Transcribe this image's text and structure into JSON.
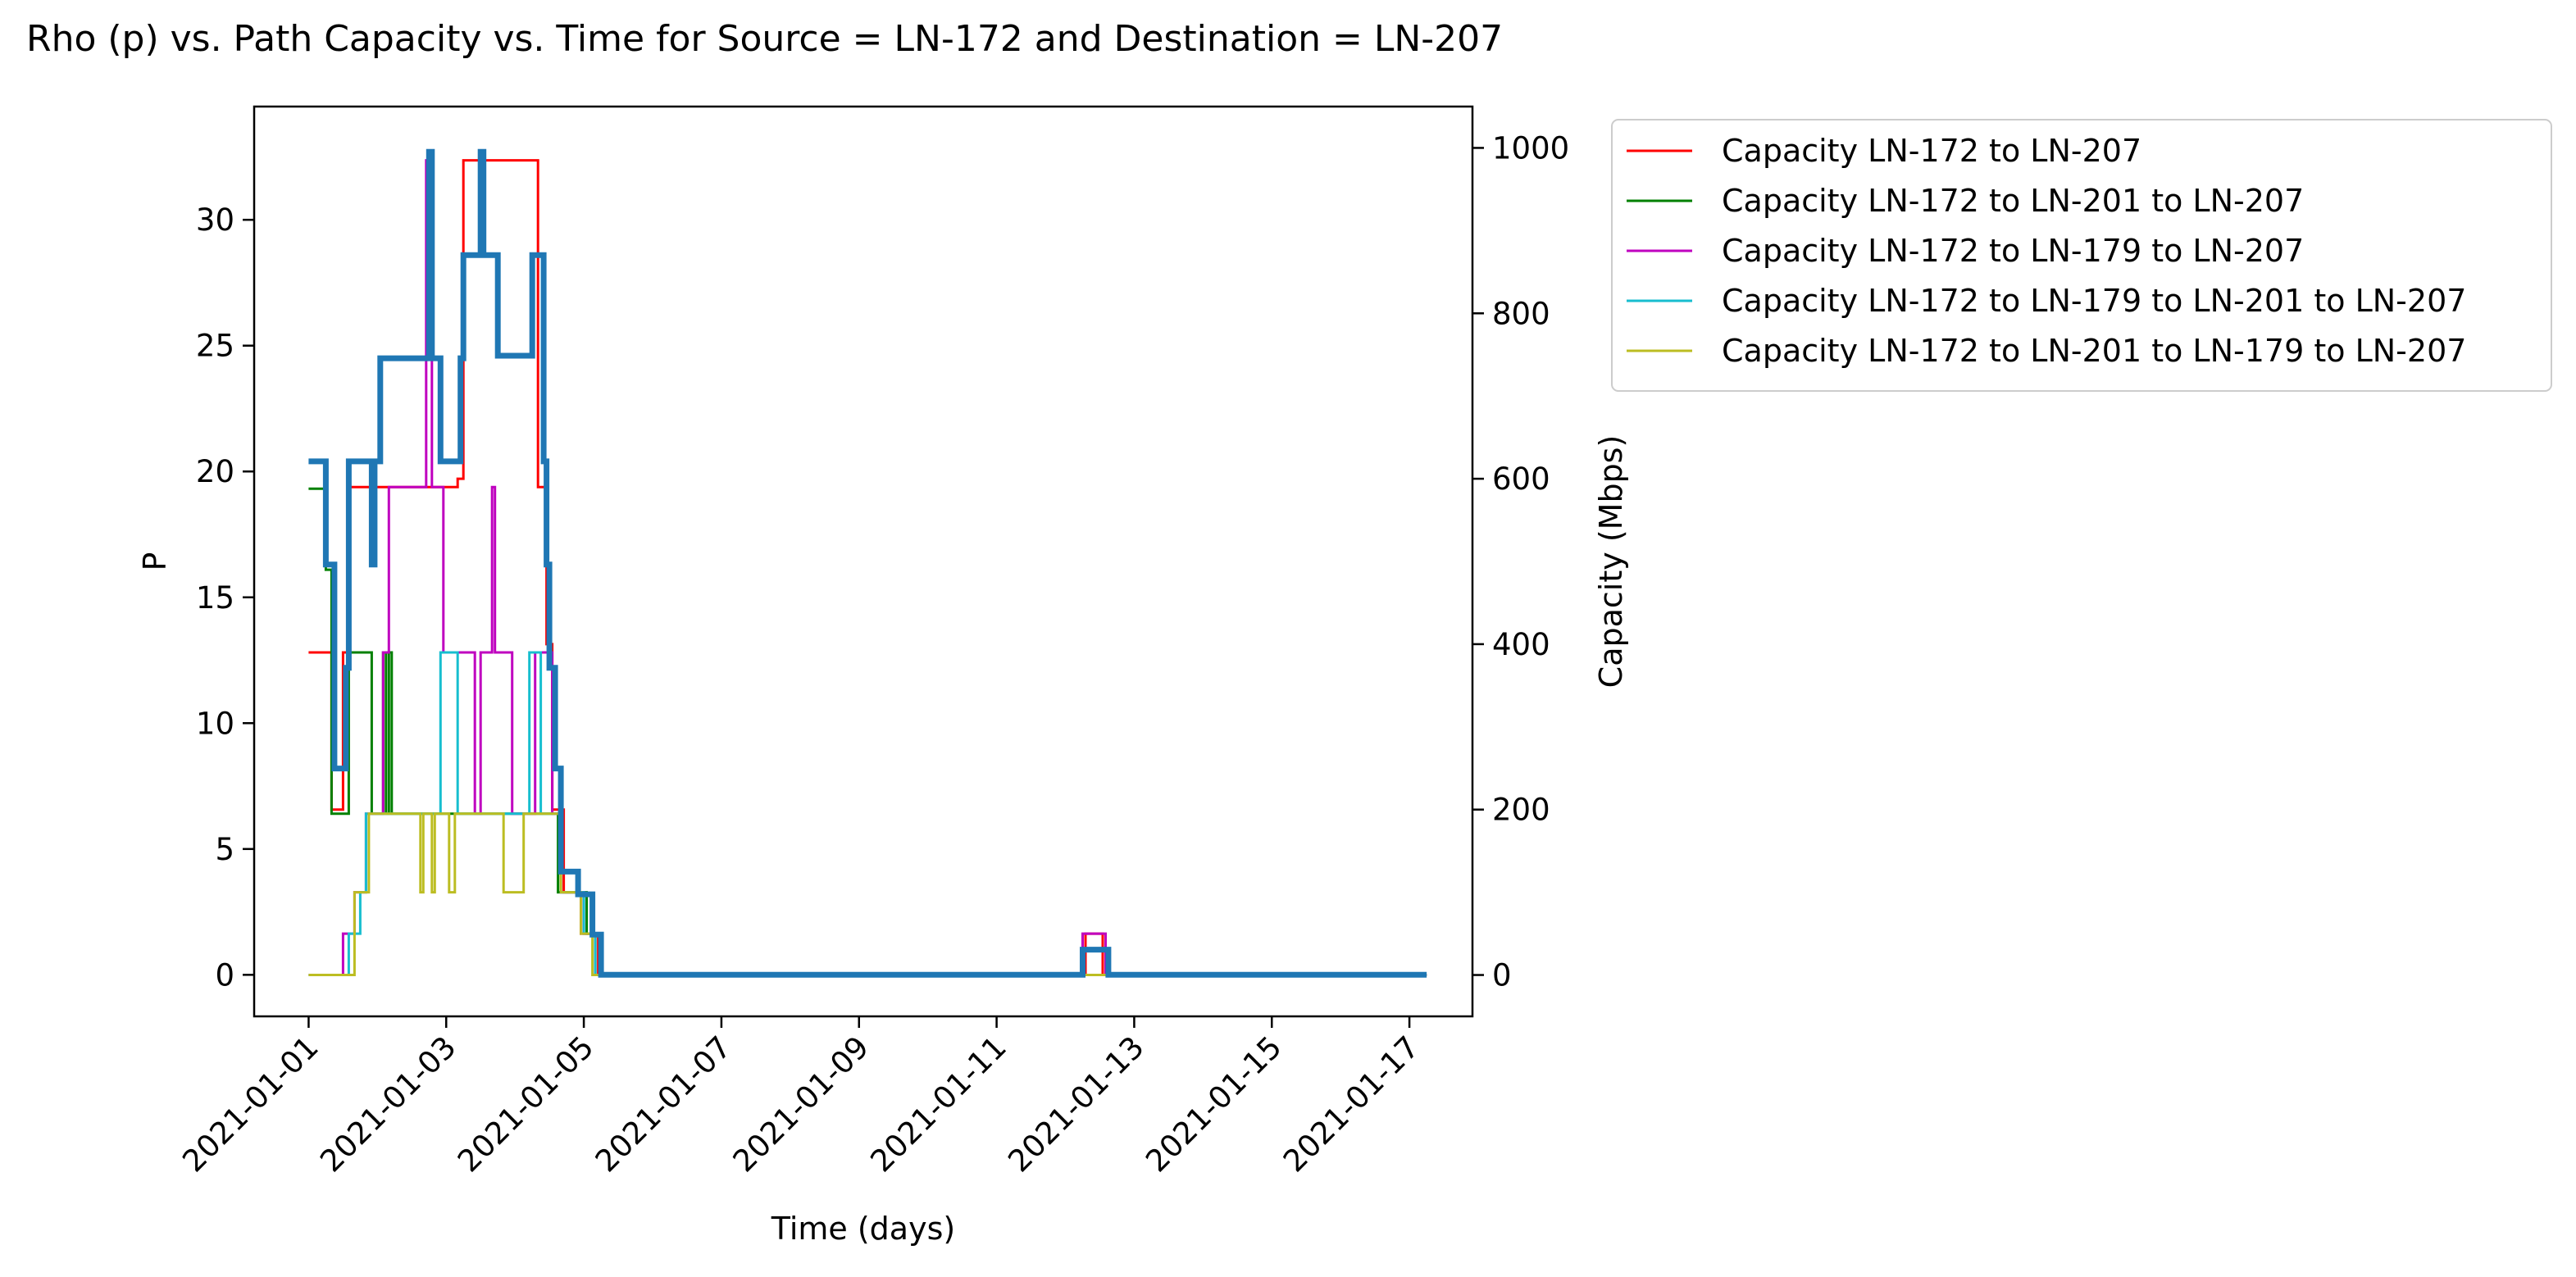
{
  "chart_data": {
    "type": "line",
    "title": "Rho (p) vs. Path Capacity vs. Time for Source = LN-172 and Destination = LN-207",
    "xlabel": "Time (days)",
    "ylabel": "P",
    "y2label": "Capacity (Mbps)",
    "x_axis": "date",
    "xlim": [
      "2020-12-31T05:00",
      "2021-01-17T22:00"
    ],
    "x_ticks": [
      "2021-01-01",
      "2021-01-03",
      "2021-01-05",
      "2021-01-07",
      "2021-01-09",
      "2021-01-11",
      "2021-01-13",
      "2021-01-15",
      "2021-01-17"
    ],
    "ylim": [
      -1.65,
      34.5
    ],
    "y_ticks": [
      0,
      5,
      10,
      15,
      20,
      25,
      30
    ],
    "y2lim": [
      -50,
      1050
    ],
    "y2_ticks": [
      0,
      200,
      400,
      600,
      800,
      1000
    ],
    "grid": false,
    "legend_position": "outside top-right",
    "rho_series": {
      "axis": "left",
      "color": "#1f77b4",
      "points": [
        [
          "2021-01-01T00:00",
          20.4
        ],
        [
          "2021-01-01T06:00",
          16.3
        ],
        [
          "2021-01-01T09:00",
          8.2
        ],
        [
          "2021-01-01T13:00",
          12.2
        ],
        [
          "2021-01-01T14:00",
          20.4
        ],
        [
          "2021-01-01T22:00",
          16.3
        ],
        [
          "2021-01-01T23:00",
          20.4
        ],
        [
          "2021-01-02T01:00",
          24.5
        ],
        [
          "2021-01-02T18:00",
          32.7
        ],
        [
          "2021-01-02T19:00",
          24.5
        ],
        [
          "2021-01-02T22:00",
          20.4
        ],
        [
          "2021-01-03T05:00",
          24.5
        ],
        [
          "2021-01-03T06:00",
          28.6
        ],
        [
          "2021-01-03T12:00",
          32.7
        ],
        [
          "2021-01-03T13:00",
          28.6
        ],
        [
          "2021-01-03T18:00",
          24.6
        ],
        [
          "2021-01-04T06:00",
          28.6
        ],
        [
          "2021-01-04T10:00",
          20.4
        ],
        [
          "2021-01-04T11:00",
          16.3
        ],
        [
          "2021-01-04T12:00",
          12.2
        ],
        [
          "2021-01-04T14:00",
          8.2
        ],
        [
          "2021-01-04T16:00",
          4.1
        ],
        [
          "2021-01-04T22:00",
          3.2
        ],
        [
          "2021-01-05T03:00",
          1.6
        ],
        [
          "2021-01-05T06:00",
          0.0
        ],
        [
          "2021-01-12T06:00",
          1.0
        ],
        [
          "2021-01-12T15:00",
          0.0
        ],
        [
          "2021-01-17T06:00",
          0.0
        ]
      ]
    },
    "series": [
      {
        "name": "Capacity LN-172 to LN-207",
        "axis": "right",
        "color": "#ff0000",
        "points": [
          [
            "2021-01-01T00:00",
            390
          ],
          [
            "2021-01-01T08:00",
            200
          ],
          [
            "2021-01-01T12:00",
            390
          ],
          [
            "2021-01-01T14:00",
            590
          ],
          [
            "2021-01-03T04:00",
            600
          ],
          [
            "2021-01-03T06:00",
            985
          ],
          [
            "2021-01-04T08:00",
            590
          ],
          [
            "2021-01-04T11:00",
            400
          ],
          [
            "2021-01-04T13:00",
            200
          ],
          [
            "2021-01-04T17:00",
            100
          ],
          [
            "2021-01-04T23:00",
            50
          ],
          [
            "2021-01-05T05:00",
            0
          ],
          [
            "2021-01-12T07:00",
            50
          ],
          [
            "2021-01-12T13:00",
            0
          ],
          [
            "2021-01-17T06:00",
            0
          ]
        ]
      },
      {
        "name": "Capacity LN-172 to LN-201 to LN-207",
        "axis": "right",
        "color": "#008000",
        "points": [
          [
            "2021-01-01T00:00",
            588
          ],
          [
            "2021-01-01T06:00",
            490
          ],
          [
            "2021-01-01T08:00",
            195
          ],
          [
            "2021-01-01T14:00",
            390
          ],
          [
            "2021-01-01T22:00",
            195
          ],
          [
            "2021-01-02T02:00",
            390
          ],
          [
            "2021-01-02T03:00",
            195
          ],
          [
            "2021-01-02T04:00",
            390
          ],
          [
            "2021-01-02T05:00",
            195
          ],
          [
            "2021-01-04T15:00",
            100
          ],
          [
            "2021-01-05T01:00",
            50
          ],
          [
            "2021-01-05T04:00",
            0
          ],
          [
            "2021-01-17T06:00",
            0
          ]
        ]
      },
      {
        "name": "Capacity LN-172 to LN-179 to LN-207",
        "axis": "right",
        "color": "#bf00bf",
        "points": [
          [
            "2021-01-01T00:00",
            0
          ],
          [
            "2021-01-01T12:00",
            50
          ],
          [
            "2021-01-01T16:00",
            100
          ],
          [
            "2021-01-01T20:00",
            195
          ],
          [
            "2021-01-02T02:00",
            390
          ],
          [
            "2021-01-02T04:00",
            590
          ],
          [
            "2021-01-02T17:00",
            985
          ],
          [
            "2021-01-02T19:00",
            590
          ],
          [
            "2021-01-02T23:00",
            390
          ],
          [
            "2021-01-03T10:00",
            195
          ],
          [
            "2021-01-03T12:00",
            390
          ],
          [
            "2021-01-03T16:00",
            590
          ],
          [
            "2021-01-03T17:00",
            390
          ],
          [
            "2021-01-03T23:00",
            195
          ],
          [
            "2021-01-04T07:00",
            390
          ],
          [
            "2021-01-04T13:00",
            195
          ],
          [
            "2021-01-04T16:00",
            100
          ],
          [
            "2021-01-05T00:00",
            50
          ],
          [
            "2021-01-05T04:00",
            0
          ],
          [
            "2021-01-12T06:00",
            50
          ],
          [
            "2021-01-12T14:00",
            0
          ],
          [
            "2021-01-17T06:00",
            0
          ]
        ]
      },
      {
        "name": "Capacity LN-172 to LN-179 to LN-201 to LN-207",
        "axis": "right",
        "color": "#17becf",
        "points": [
          [
            "2021-01-01T00:00",
            0
          ],
          [
            "2021-01-01T14:00",
            50
          ],
          [
            "2021-01-01T18:00",
            100
          ],
          [
            "2021-01-01T20:00",
            195
          ],
          [
            "2021-01-02T22:00",
            390
          ],
          [
            "2021-01-03T04:00",
            195
          ],
          [
            "2021-01-04T05:00",
            390
          ],
          [
            "2021-01-04T09:00",
            195
          ],
          [
            "2021-01-04T16:00",
            100
          ],
          [
            "2021-01-05T00:00",
            50
          ],
          [
            "2021-01-05T04:00",
            0
          ],
          [
            "2021-01-17T06:00",
            0
          ]
        ]
      },
      {
        "name": "Capacity LN-172 to LN-201 to LN-179 to LN-207",
        "axis": "right",
        "color": "#bcbd22",
        "points": [
          [
            "2021-01-01T00:00",
            0
          ],
          [
            "2021-01-01T16:00",
            100
          ],
          [
            "2021-01-01T21:00",
            195
          ],
          [
            "2021-01-02T15:00",
            100
          ],
          [
            "2021-01-02T16:00",
            195
          ],
          [
            "2021-01-02T19:00",
            100
          ],
          [
            "2021-01-02T20:00",
            195
          ],
          [
            "2021-01-03T01:00",
            100
          ],
          [
            "2021-01-03T03:00",
            195
          ],
          [
            "2021-01-03T20:00",
            100
          ],
          [
            "2021-01-04T03:00",
            195
          ],
          [
            "2021-01-04T16:00",
            100
          ],
          [
            "2021-01-04T23:00",
            50
          ],
          [
            "2021-01-05T03:00",
            0
          ],
          [
            "2021-01-17T06:00",
            0
          ]
        ]
      }
    ]
  }
}
